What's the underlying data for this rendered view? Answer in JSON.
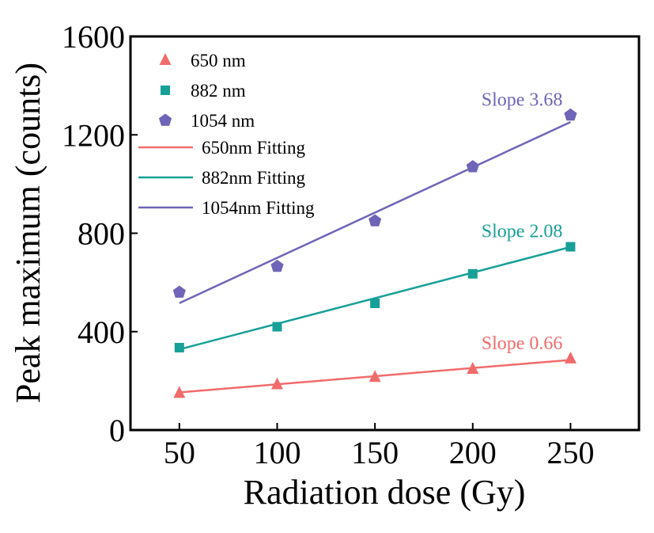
{
  "chart_data": {
    "type": "scatter",
    "xlabel": "Radiation dose (Gy)",
    "ylabel": "Peak maximum (counts)",
    "xlim": [
      25,
      285
    ],
    "ylim": [
      0,
      1600
    ],
    "xticks": [
      50,
      100,
      150,
      200,
      250
    ],
    "yticks": [
      0,
      400,
      800,
      1200,
      1600
    ],
    "x": [
      50,
      100,
      150,
      200,
      250
    ],
    "grid": false,
    "legend_position": "top-left",
    "series": [
      {
        "name": "650 nm",
        "marker": "triangle",
        "color": "#F26B6B",
        "values": [
          150,
          185,
          215,
          248,
          290
        ],
        "fit_name": "650nm Fitting",
        "fit": [
          153,
          285
        ],
        "slope_label": "Slope 0.66"
      },
      {
        "name": "882 nm",
        "marker": "square",
        "color": "#17A097",
        "values": [
          335,
          420,
          515,
          635,
          745
        ],
        "fit_name": "882nm Fitting",
        "fit": [
          328,
          744
        ],
        "slope_label": "Slope 2.08"
      },
      {
        "name": "1054 nm",
        "marker": "pentagon",
        "color": "#6E64B8",
        "values": [
          560,
          665,
          850,
          1070,
          1280
        ],
        "fit_name": "1054nm Fitting",
        "fit": [
          516,
          1252
        ],
        "slope_label": "Slope 3.68"
      }
    ]
  }
}
